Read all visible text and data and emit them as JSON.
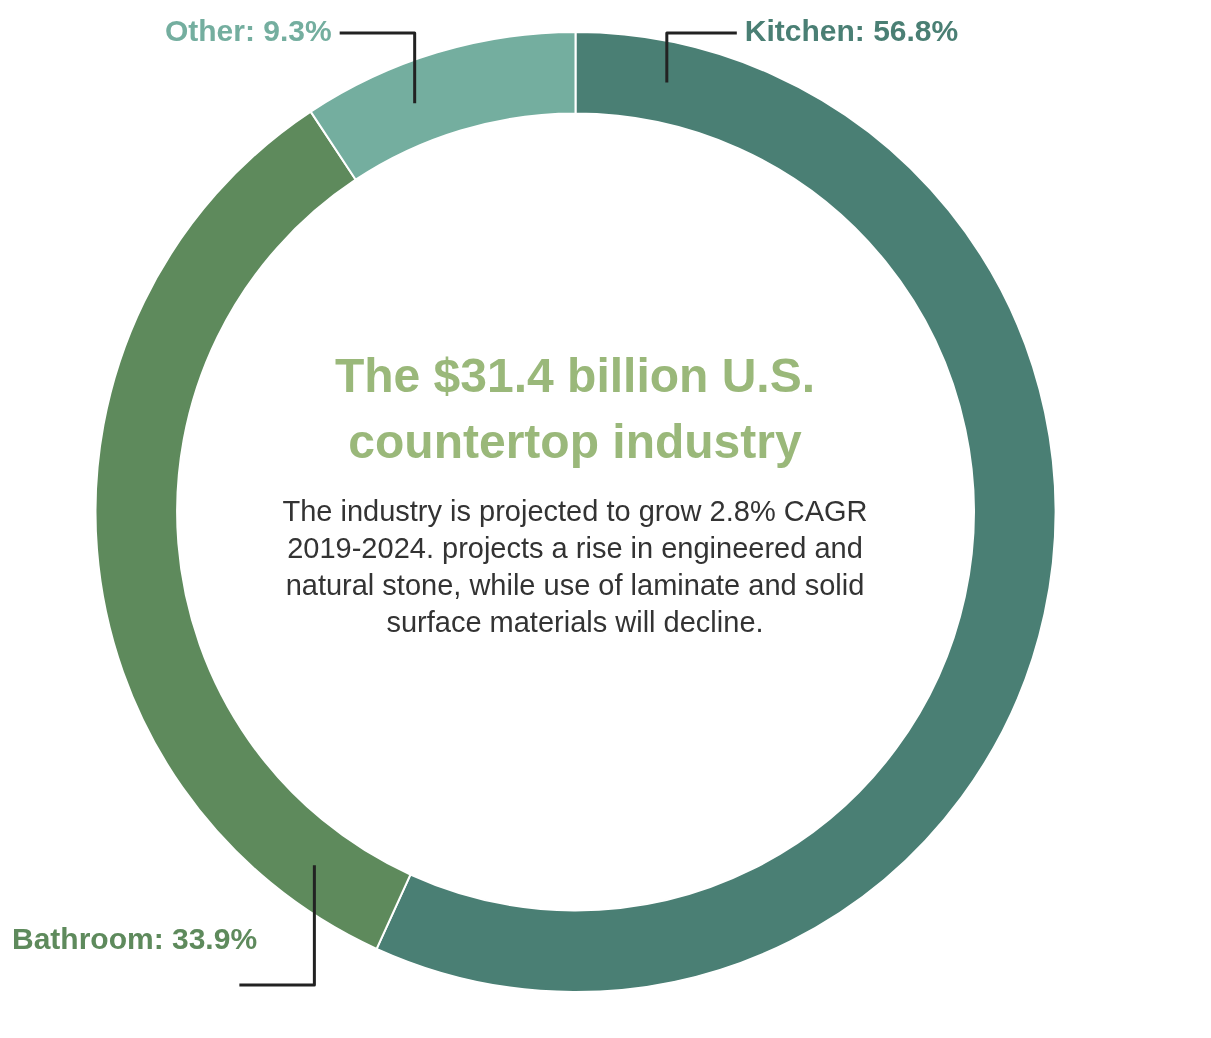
{
  "chart_data": {
    "type": "donut",
    "title": "The $31.4 billion U.S. countertop industry",
    "categories": [
      "Kitchen",
      "Bathroom",
      "Other"
    ],
    "values": [
      56.8,
      33.9,
      9.3
    ],
    "value_labels": [
      "56.8%",
      "33.9%",
      "9.3%"
    ],
    "colors": [
      "#4a7f74",
      "#5e8a5c",
      "#74ae9f"
    ],
    "annotations": [
      "The industry is projected to grow 2.8% CAGR 2019-2024. projects a rise in engineered and natural stone, while use of laminate and solid surface materials will decline."
    ]
  }
}
